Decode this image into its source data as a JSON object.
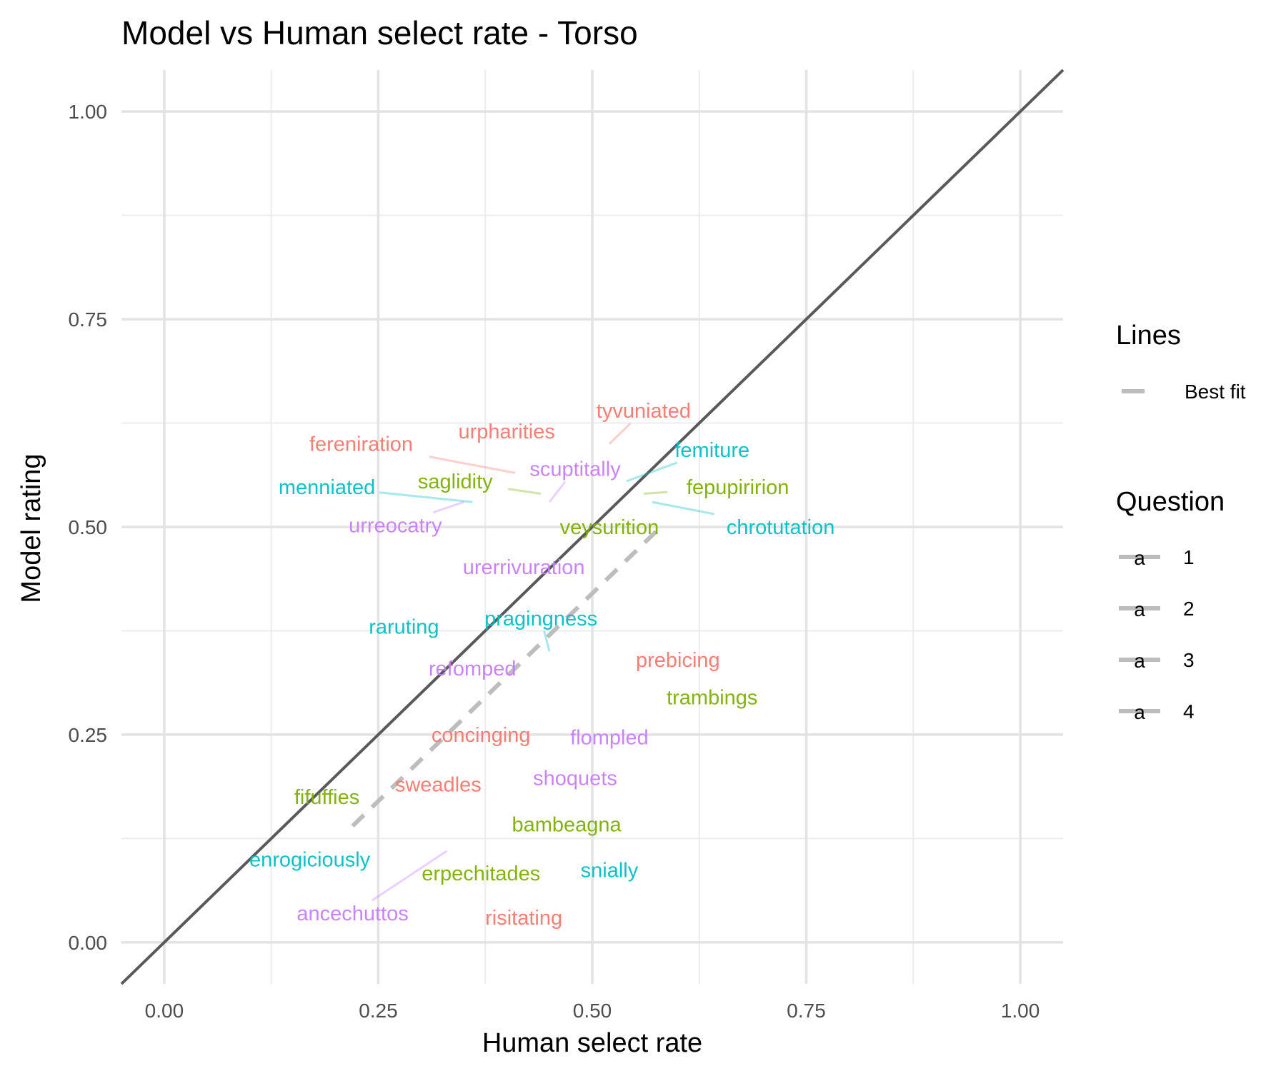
{
  "chart_data": {
    "type": "scatter",
    "title": "Model vs Human select rate - Torso",
    "xlabel": "Human select rate",
    "ylabel": "Model rating",
    "xlim": [
      -0.05,
      1.05
    ],
    "ylim": [
      -0.05,
      1.05
    ],
    "x_ticks": [
      0.0,
      0.25,
      0.5,
      0.75,
      1.0
    ],
    "x_tick_labels": [
      "0.00",
      "0.25",
      "0.50",
      "0.75",
      "1.00"
    ],
    "y_ticks": [
      0.0,
      0.25,
      0.5,
      0.75,
      1.0
    ],
    "y_tick_labels": [
      "0.00",
      "0.25",
      "0.50",
      "0.75",
      "1.00"
    ],
    "grid": true,
    "colors": {
      "1": "#F8766D",
      "2": "#7CAE00",
      "3": "#00BFC4",
      "4": "#C77CFF",
      "identity": "#595959",
      "best_fit": "#bdbdbd"
    },
    "reference_lines": [
      {
        "name": "Identity",
        "slope": 1,
        "intercept": 0
      },
      {
        "name": "Best fit",
        "slope": 1.0,
        "intercept": -0.08,
        "x_range": [
          0.22,
          0.575
        ],
        "dashed": true
      }
    ],
    "legends": {
      "lines": {
        "title": "Lines",
        "items": [
          "Best fit"
        ]
      },
      "question": {
        "title": "Question",
        "items": [
          "1",
          "2",
          "3",
          "4"
        ],
        "key_glyph": "a"
      }
    },
    "points": [
      {
        "label": "tyvuniated",
        "question": "1",
        "x": 0.52,
        "y": 0.6,
        "lx": 0.56,
        "ly": 0.64
      },
      {
        "label": "urpharities",
        "question": "1",
        "x": 0.44,
        "y": 0.62,
        "lx": 0.4,
        "ly": 0.615
      },
      {
        "label": "fereniration",
        "question": "1",
        "x": 0.41,
        "y": 0.565,
        "lx": 0.23,
        "ly": 0.6
      },
      {
        "label": "prebicing",
        "question": "1",
        "x": 0.6,
        "y": 0.33,
        "lx": 0.6,
        "ly": 0.34
      },
      {
        "label": "concinging",
        "question": "1",
        "x": 0.37,
        "y": 0.25,
        "lx": 0.37,
        "ly": 0.25
      },
      {
        "label": "sweadles",
        "question": "1",
        "x": 0.32,
        "y": 0.19,
        "lx": 0.32,
        "ly": 0.19
      },
      {
        "label": "risitating",
        "question": "1",
        "x": 0.42,
        "y": 0.03,
        "lx": 0.42,
        "ly": 0.03
      },
      {
        "label": "saglidity",
        "question": "2",
        "x": 0.44,
        "y": 0.54,
        "lx": 0.34,
        "ly": 0.555
      },
      {
        "label": "fepupiririon",
        "question": "2",
        "x": 0.56,
        "y": 0.54,
        "lx": 0.67,
        "ly": 0.548
      },
      {
        "label": "veysurition",
        "question": "2",
        "x": 0.52,
        "y": 0.5,
        "lx": 0.52,
        "ly": 0.5
      },
      {
        "label": "trambings",
        "question": "2",
        "x": 0.64,
        "y": 0.3,
        "lx": 0.64,
        "ly": 0.295
      },
      {
        "label": "fifuffies",
        "question": "2",
        "x": 0.19,
        "y": 0.175,
        "lx": 0.19,
        "ly": 0.175
      },
      {
        "label": "bambeagna",
        "question": "2",
        "x": 0.47,
        "y": 0.145,
        "lx": 0.47,
        "ly": 0.142
      },
      {
        "label": "erpechitades",
        "question": "2",
        "x": 0.37,
        "y": 0.083,
        "lx": 0.37,
        "ly": 0.083
      },
      {
        "label": "femiture",
        "question": "3",
        "x": 0.54,
        "y": 0.555,
        "lx": 0.64,
        "ly": 0.593
      },
      {
        "label": "menniated",
        "question": "3",
        "x": 0.36,
        "y": 0.53,
        "lx": 0.19,
        "ly": 0.548
      },
      {
        "label": "chrotutation",
        "question": "3",
        "x": 0.57,
        "y": 0.53,
        "lx": 0.72,
        "ly": 0.5
      },
      {
        "label": "raruting",
        "question": "3",
        "x": 0.28,
        "y": 0.38,
        "lx": 0.28,
        "ly": 0.38
      },
      {
        "label": "pragingness",
        "question": "3",
        "x": 0.45,
        "y": 0.35,
        "lx": 0.44,
        "ly": 0.39
      },
      {
        "label": "enrogiciously",
        "question": "3",
        "x": 0.17,
        "y": 0.1,
        "lx": 0.17,
        "ly": 0.1
      },
      {
        "label": "snially",
        "question": "3",
        "x": 0.52,
        "y": 0.087,
        "lx": 0.52,
        "ly": 0.087
      },
      {
        "label": "scuptitally",
        "question": "4",
        "x": 0.45,
        "y": 0.53,
        "lx": 0.48,
        "ly": 0.57
      },
      {
        "label": "urreocatry",
        "question": "4",
        "x": 0.35,
        "y": 0.53,
        "lx": 0.27,
        "ly": 0.502
      },
      {
        "label": "urerrivuration",
        "question": "4",
        "x": 0.43,
        "y": 0.47,
        "lx": 0.42,
        "ly": 0.452
      },
      {
        "label": "refomped",
        "question": "4",
        "x": 0.36,
        "y": 0.33,
        "lx": 0.36,
        "ly": 0.33
      },
      {
        "label": "flompled",
        "question": "4",
        "x": 0.52,
        "y": 0.25,
        "lx": 0.52,
        "ly": 0.247
      },
      {
        "label": "shoquets",
        "question": "4",
        "x": 0.48,
        "y": 0.2,
        "lx": 0.48,
        "ly": 0.198
      },
      {
        "label": "ancechuttos",
        "question": "4",
        "x": 0.33,
        "y": 0.11,
        "lx": 0.22,
        "ly": 0.035
      }
    ]
  }
}
